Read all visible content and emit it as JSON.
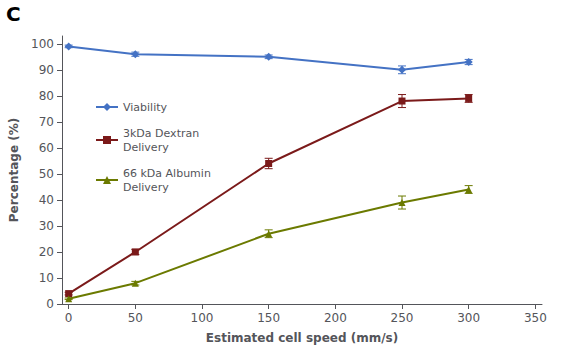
{
  "chart_data": {
    "type": "line",
    "xlabel": "Estimated cell speed (mm/s)",
    "ylabel": "Percentage (%)",
    "annotations": [
      "C"
    ],
    "x": [
      0,
      50,
      150,
      250,
      300
    ],
    "series": [
      {
        "name": "Viability",
        "color": "#4472C4",
        "marker": "diamond",
        "values": [
          99,
          96,
          95,
          90,
          93
        ],
        "errors": [
          0.5,
          0.8,
          0.7,
          1.5,
          1.0
        ]
      },
      {
        "name": "3kDa Dextran\nDelivery",
        "color": "#7B1A1A",
        "marker": "square",
        "values": [
          4,
          20,
          54,
          78,
          79
        ],
        "errors": [
          0.5,
          1.0,
          2.0,
          2.5,
          1.5
        ]
      },
      {
        "name": "66 kDa Albumin\nDelivery",
        "color": "#6B7A00",
        "marker": "triangle",
        "values": [
          2,
          8,
          27,
          39,
          44
        ],
        "errors": [
          0.3,
          0.7,
          1.5,
          2.5,
          1.5
        ]
      }
    ],
    "xlim": [
      -5,
      355
    ],
    "ylim": [
      0,
      103
    ],
    "xticks": [
      0,
      50,
      100,
      150,
      200,
      250,
      300,
      350
    ],
    "yticks": [
      0,
      10,
      20,
      30,
      40,
      50,
      60,
      70,
      80,
      90,
      100
    ],
    "grid": false,
    "legend": "upper left"
  }
}
